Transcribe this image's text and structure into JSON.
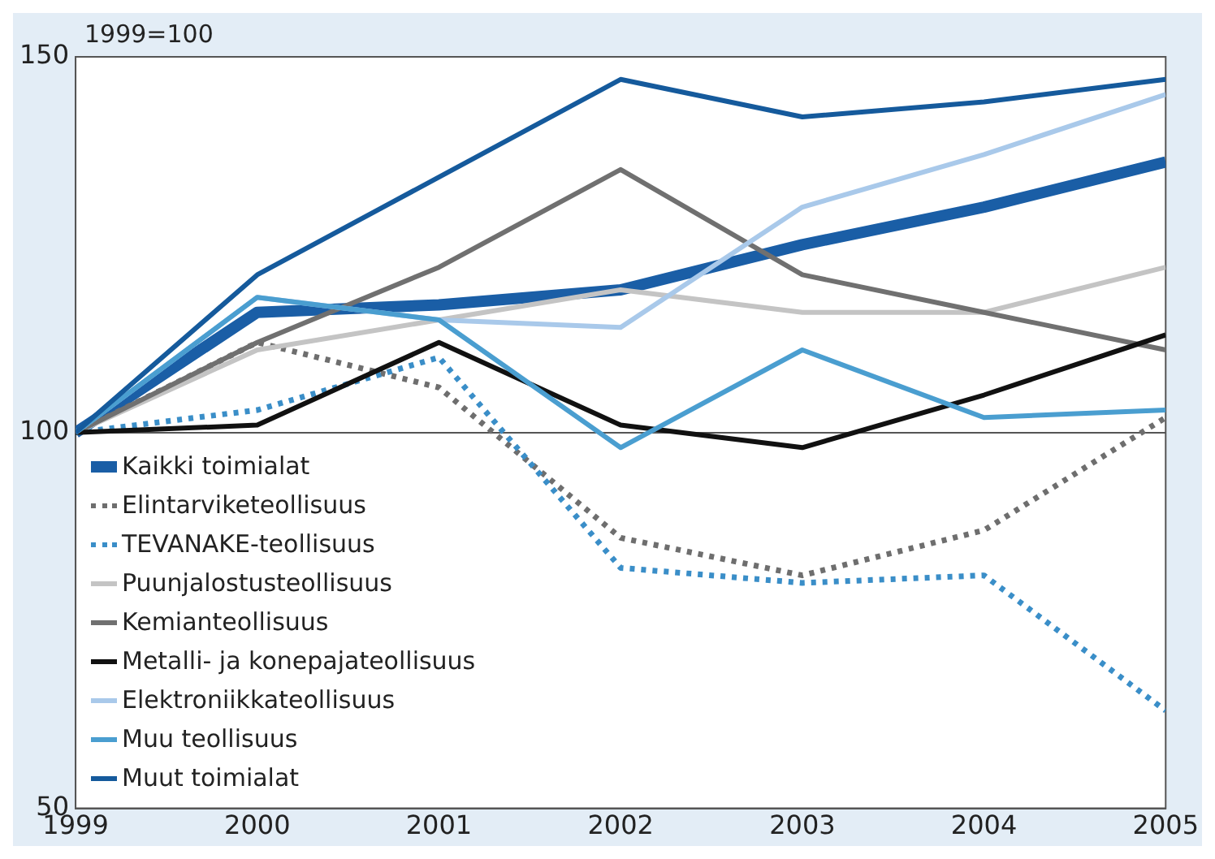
{
  "chart_data": {
    "type": "line",
    "ylabel": "1999=100",
    "x": [
      1999,
      2000,
      2001,
      2002,
      2003,
      2004,
      2005
    ],
    "xlim": [
      1999,
      2005
    ],
    "xticks": [
      1999,
      2000,
      2001,
      2002,
      2003,
      2004,
      2005
    ],
    "ylim": [
      50,
      150
    ],
    "yticks": [
      50,
      100,
      150
    ],
    "grid": "y",
    "legend": "bottom left",
    "marker": "none",
    "series": [
      {
        "name": "Kaikki toimialat",
        "color": "#1a5ea6",
        "values": [
          100,
          116,
          117,
          119,
          125,
          130,
          136
        ]
      },
      {
        "name": "Elintarviketeollisuus",
        "color": "#6e6e6e",
        "line_style": "dotted",
        "values": [
          100,
          112,
          106,
          86,
          81,
          87,
          102
        ]
      },
      {
        "name": "TEVANAKE-teollisuus",
        "color": "#3a8ec8",
        "line_style": "dotted",
        "values": [
          100,
          103,
          110,
          82,
          80,
          81,
          63
        ]
      },
      {
        "name": "Puunjalostusteollisuus",
        "color": "#c4c4c4",
        "values": [
          100,
          111,
          115,
          119,
          116,
          116,
          122
        ]
      },
      {
        "name": "Kemianteollisuus",
        "color": "#707070",
        "values": [
          100,
          112,
          122,
          135,
          121,
          116,
          111
        ]
      },
      {
        "name": "Metalli- ja konepajateollisuus",
        "color": "#111111",
        "values": [
          100,
          101,
          112,
          101,
          98,
          105,
          113
        ]
      },
      {
        "name": "Elektroniikkateollisuus",
        "color": "#a9c9ea",
        "values": [
          100,
          118,
          115,
          114,
          130,
          137,
          145
        ]
      },
      {
        "name": "Muu teollisuus",
        "color": "#4a9ed0",
        "values": [
          100,
          118,
          115,
          98,
          111,
          102,
          103
        ]
      },
      {
        "name": "Muut toimialat",
        "color": "#155a9c",
        "values": [
          100,
          121,
          134,
          147,
          142,
          144,
          147
        ]
      }
    ]
  }
}
